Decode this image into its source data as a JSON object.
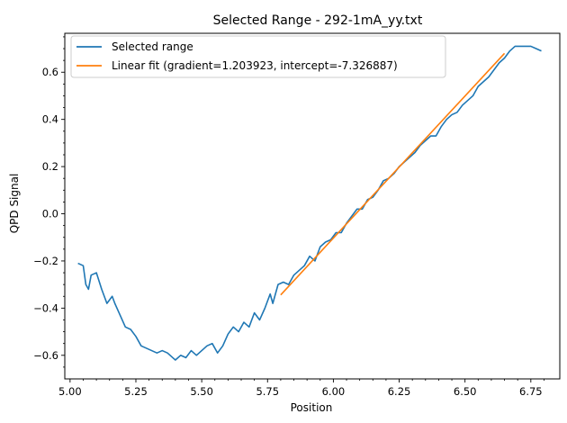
{
  "chart_data": {
    "type": "line",
    "title": "Selected Range - 292-1mA_yy.txt",
    "xlabel": "Position",
    "ylabel": "QPD Signal",
    "xlim": [
      4.98,
      6.86
    ],
    "ylim": [
      -0.7,
      0.765
    ],
    "grid": false,
    "legend_position": "top-left",
    "x_ticks": [
      5.0,
      5.25,
      5.5,
      5.75,
      6.0,
      6.25,
      6.5,
      6.75
    ],
    "x_tick_labels": [
      "5.00",
      "5.25",
      "5.50",
      "5.75",
      "6.00",
      "6.25",
      "6.50",
      "6.75"
    ],
    "y_ticks": [
      -0.6,
      -0.4,
      -0.2,
      0.0,
      0.2,
      0.4,
      0.6
    ],
    "y_tick_labels": [
      "−0.6",
      "−0.4",
      "−0.2",
      "0.0",
      "0.2",
      "0.4",
      "0.6"
    ],
    "series": [
      {
        "name": "Selected range",
        "color": "#1f77b4",
        "x": [
          5.03,
          5.05,
          5.06,
          5.07,
          5.08,
          5.1,
          5.12,
          5.14,
          5.16,
          5.17,
          5.19,
          5.21,
          5.23,
          5.25,
          5.27,
          5.29,
          5.31,
          5.33,
          5.35,
          5.37,
          5.39,
          5.4,
          5.42,
          5.44,
          5.46,
          5.48,
          5.5,
          5.52,
          5.54,
          5.56,
          5.58,
          5.6,
          5.62,
          5.64,
          5.66,
          5.68,
          5.7,
          5.72,
          5.74,
          5.76,
          5.77,
          5.79,
          5.81,
          5.83,
          5.85,
          5.87,
          5.89,
          5.91,
          5.93,
          5.95,
          5.97,
          5.99,
          6.01,
          6.03,
          6.05,
          6.07,
          6.09,
          6.11,
          6.13,
          6.15,
          6.17,
          6.19,
          6.21,
          6.23,
          6.25,
          6.27,
          6.29,
          6.31,
          6.33,
          6.35,
          6.37,
          6.39,
          6.41,
          6.43,
          6.45,
          6.47,
          6.49,
          6.51,
          6.53,
          6.55,
          6.57,
          6.59,
          6.61,
          6.63,
          6.65,
          6.67,
          6.69,
          6.71,
          6.73,
          6.75,
          6.77,
          6.79
        ],
        "y": [
          -0.21,
          -0.22,
          -0.3,
          -0.32,
          -0.26,
          -0.25,
          -0.32,
          -0.38,
          -0.35,
          -0.38,
          -0.43,
          -0.48,
          -0.49,
          -0.52,
          -0.56,
          -0.57,
          -0.58,
          -0.59,
          -0.58,
          -0.59,
          -0.61,
          -0.62,
          -0.6,
          -0.61,
          -0.58,
          -0.6,
          -0.58,
          -0.56,
          -0.55,
          -0.59,
          -0.56,
          -0.51,
          -0.48,
          -0.5,
          -0.46,
          -0.48,
          -0.42,
          -0.45,
          -0.4,
          -0.34,
          -0.38,
          -0.3,
          -0.29,
          -0.3,
          -0.26,
          -0.24,
          -0.22,
          -0.18,
          -0.2,
          -0.14,
          -0.12,
          -0.11,
          -0.08,
          -0.08,
          -0.04,
          -0.01,
          0.02,
          0.02,
          0.06,
          0.07,
          0.1,
          0.14,
          0.15,
          0.17,
          0.2,
          0.22,
          0.24,
          0.26,
          0.29,
          0.31,
          0.33,
          0.33,
          0.37,
          0.4,
          0.42,
          0.43,
          0.46,
          0.48,
          0.5,
          0.54,
          0.56,
          0.58,
          0.61,
          0.64,
          0.66,
          0.69,
          0.71,
          0.71,
          0.71,
          0.71,
          0.7,
          0.69
        ]
      },
      {
        "name": "Linear fit (gradient=1.203923, intercept=-7.326887)",
        "color": "#ff7f0e",
        "x": [
          5.8,
          6.65
        ],
        "y": [
          -0.344,
          0.68
        ]
      }
    ]
  }
}
